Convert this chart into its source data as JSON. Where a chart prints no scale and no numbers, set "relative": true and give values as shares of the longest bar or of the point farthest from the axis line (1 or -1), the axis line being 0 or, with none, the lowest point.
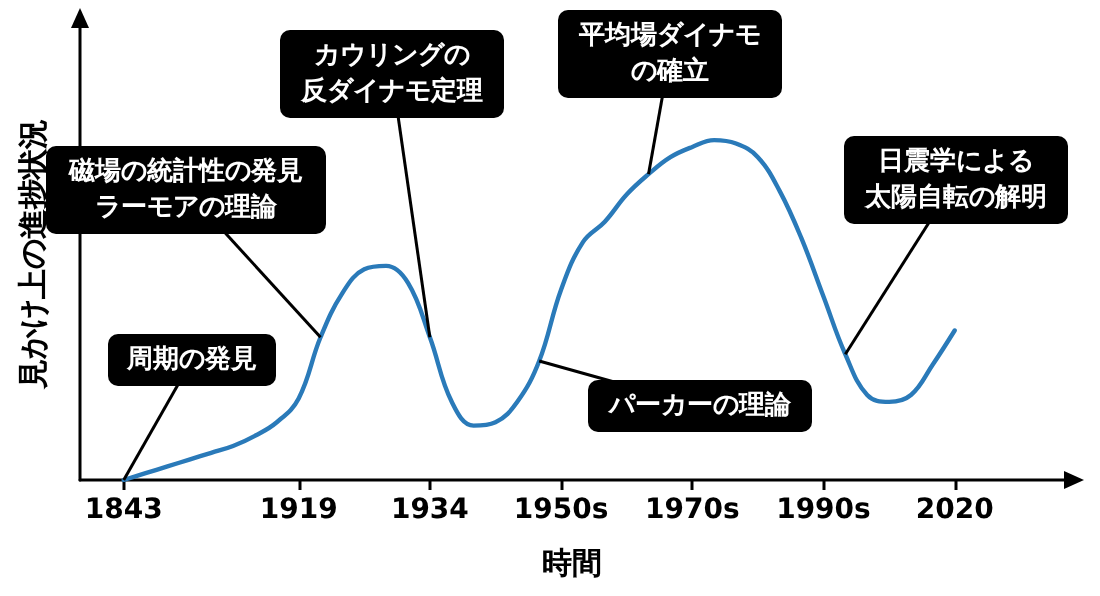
{
  "chart_data": {
    "type": "line",
    "relative": true,
    "xlabel": "時間",
    "ylabel": "見かけ上の進捗状況",
    "categories": [
      null,
      null,
      "1843",
      null,
      null,
      null,
      null,
      null,
      null,
      null,
      "1919",
      null,
      null,
      null,
      null,
      null,
      "1934",
      null,
      null,
      null,
      null,
      null,
      "1950s",
      null,
      null,
      null,
      null,
      null,
      "1970s",
      null,
      null,
      null,
      null,
      null,
      "1990s",
      null,
      null,
      null,
      null,
      null,
      "2020",
      null,
      null,
      null,
      null,
      null
    ],
    "series": [
      {
        "color": "#2a7ab9",
        "values": [
          null,
          null,
          0,
          0.02,
          0.04,
          0.06,
          0.08,
          0.1,
          0.13,
          0.17,
          0.24,
          0.42,
          0.55,
          0.62,
          0.63,
          0.58,
          0.42,
          0.23,
          0.16,
          0.17,
          0.23,
          0.35,
          0.56,
          0.7,
          0.76,
          0.84,
          0.9,
          0.95,
          0.98,
          1,
          0.99,
          0.95,
          0.85,
          0.71,
          0.54,
          0.37,
          0.25,
          0.23,
          0.25,
          0.34,
          0.44,
          null,
          null,
          null,
          null,
          null
        ]
      }
    ],
    "annotations": [
      "周期の発見",
      "磁場の統計性の発見ラーモアの理論",
      "カウリングの反ダイナモ定理",
      "パーカーの理論",
      "平均場ダイナモの確立",
      "日震学による太陽自転の解明"
    ],
    "grid": false,
    "marker": "none",
    "line_style": "solid"
  }
}
